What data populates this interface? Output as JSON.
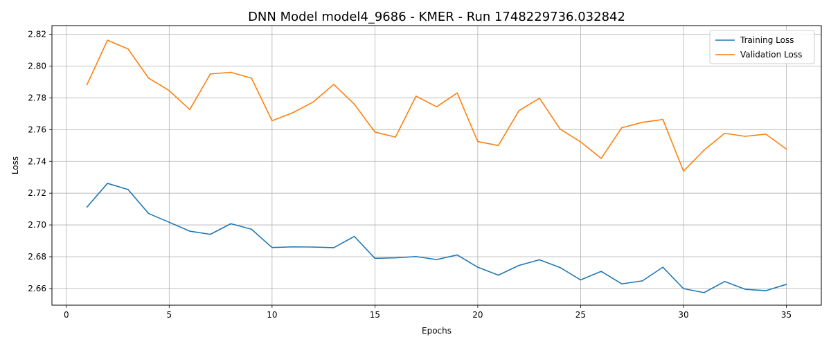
{
  "chart_data": {
    "type": "line",
    "title": "DNN Model model4_9686 - KMER - Run 1748229736.032842",
    "xlabel": "Epochs",
    "ylabel": "Loss",
    "xlim": [
      -0.7,
      36.7
    ],
    "ylim": [
      2.6495,
      2.8255
    ],
    "x_ticks": [
      0,
      5,
      10,
      15,
      20,
      25,
      30,
      35
    ],
    "y_ticks": [
      2.66,
      2.68,
      2.7,
      2.72,
      2.74,
      2.76,
      2.78,
      2.8,
      2.82
    ],
    "x_tick_labels": [
      "0",
      "5",
      "10",
      "15",
      "20",
      "25",
      "30",
      "35"
    ],
    "y_tick_labels": [
      "2.66",
      "2.68",
      "2.70",
      "2.72",
      "2.74",
      "2.76",
      "2.78",
      "2.80",
      "2.82"
    ],
    "grid": true,
    "legend_position": "top-right",
    "x": [
      1,
      2,
      3,
      4,
      5,
      6,
      7,
      8,
      9,
      10,
      11,
      12,
      13,
      14,
      15,
      16,
      17,
      18,
      19,
      20,
      21,
      22,
      23,
      24,
      25,
      26,
      27,
      28,
      29,
      30,
      31,
      32,
      33,
      34,
      35
    ],
    "series": [
      {
        "name": "Training Loss",
        "color": "#1f77b4",
        "values": [
          2.7112,
          2.7262,
          2.7223,
          2.7072,
          2.7017,
          2.6961,
          2.6941,
          2.7008,
          2.6973,
          2.6858,
          2.6862,
          2.6861,
          2.6857,
          2.6928,
          2.679,
          2.6793,
          2.6801,
          2.6782,
          2.6811,
          2.6734,
          2.6684,
          2.6745,
          2.6781,
          2.6732,
          2.6654,
          2.6708,
          2.6629,
          2.6648,
          2.6734,
          2.6599,
          2.6574,
          2.6644,
          2.6595,
          2.6586,
          2.6626
        ]
      },
      {
        "name": "Validation Loss",
        "color": "#ff7f0e",
        "values": [
          2.7882,
          2.8163,
          2.8108,
          2.7924,
          2.7846,
          2.7726,
          2.7951,
          2.7961,
          2.7924,
          2.7656,
          2.7706,
          2.7774,
          2.7885,
          2.776,
          2.7585,
          2.7553,
          2.7811,
          2.7744,
          2.7831,
          2.7525,
          2.75,
          2.7719,
          2.7798,
          2.7604,
          2.7523,
          2.7419,
          2.7612,
          2.7646,
          2.7664,
          2.7339,
          2.7471,
          2.7577,
          2.7558,
          2.7572,
          2.7478
        ]
      }
    ]
  }
}
